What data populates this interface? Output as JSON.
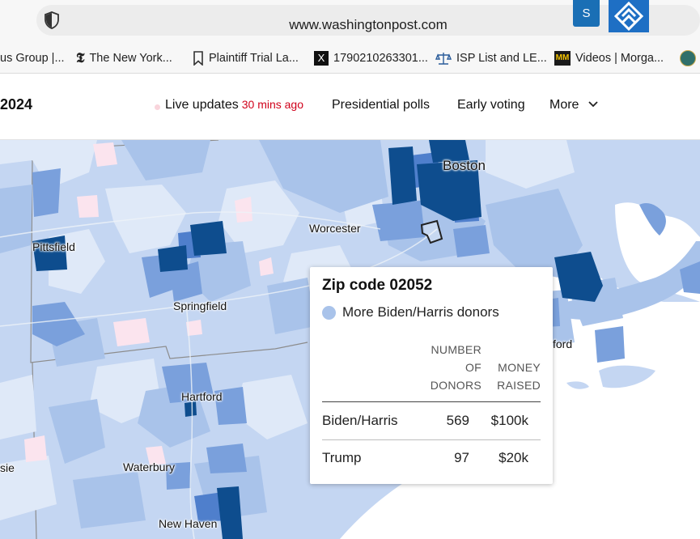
{
  "browser": {
    "url": "www.washingtonpost.com",
    "profile_initial": "S",
    "bookmarks": [
      {
        "label": "us Group |...",
        "icon": "folder-icon"
      },
      {
        "label": "The New York...",
        "icon": "nyt-icon"
      },
      {
        "label": "Plaintiff Trial La...",
        "icon": "bookmark-icon"
      },
      {
        "label": "1790210263301...",
        "icon": "x-icon"
      },
      {
        "label": "ISP List and LE...",
        "icon": "scales-icon"
      },
      {
        "label": "Videos | Morga...",
        "icon": "morgan-icon"
      }
    ]
  },
  "site_nav": {
    "year": "2024",
    "live_updates": "Live updates",
    "live_time": "30 mins ago",
    "polls": "Presidential polls",
    "early_voting": "Early voting",
    "more": "More"
  },
  "map": {
    "labels": [
      "Boston",
      "Worcester",
      "Pittsfield",
      "Springfield",
      "Hartford",
      "Waterbury",
      "New Haven",
      "sie",
      "ford"
    ],
    "colors": {
      "lightest": "#dfe9f8",
      "light": "#c4d6f2",
      "medium_light": "#a9c3ea",
      "medium": "#7aa0dc",
      "medium_dark": "#4f7fcc",
      "dark": "#0e4d8e",
      "pink": "#fbe4ee"
    }
  },
  "tooltip": {
    "title": "Zip code 02052",
    "legend": "More Biden/Harris donors",
    "col_donors_1": "NUMBER",
    "col_donors_2": "OF",
    "col_donors_3": "DONORS",
    "col_money_1": "MONEY",
    "col_money_2": "RAISED",
    "rows": [
      {
        "name": "Biden/Harris",
        "donors": "569",
        "money": "$100k"
      },
      {
        "name": "Trump",
        "donors": "97",
        "money": "$20k"
      }
    ]
  }
}
